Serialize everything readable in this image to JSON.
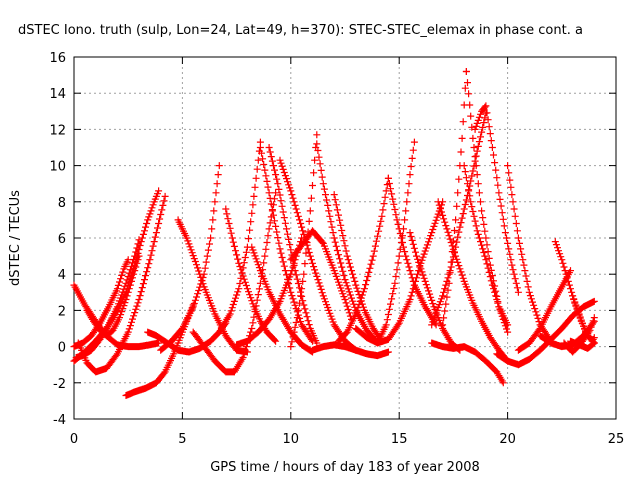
{
  "chart_data": {
    "type": "scatter",
    "title": "dSTEC Iono. truth (sulp, Lon=24, Lat=49, h=370): STEC-STEC_elemax in phase cont. a",
    "xlabel": "GPS time / hours of day 183 of year 2008",
    "ylabel": "dSTEC  / TECUs",
    "xlim": [
      0,
      25
    ],
    "ylim": [
      -4,
      16
    ],
    "xticks": [
      "0",
      "5",
      "10",
      "15",
      "20",
      "25"
    ],
    "yticks": [
      "-4",
      "-2",
      "0",
      "2",
      "4",
      "6",
      "8",
      "10",
      "12",
      "14",
      "16"
    ],
    "grid": true,
    "marker": "plus",
    "color": "#ff0000",
    "series": [
      {
        "x": [
          0.0,
          0.5,
          1.0,
          1.5,
          2.0,
          2.5,
          3.0,
          3.5,
          3.9
        ],
        "y": [
          3.4,
          2.3,
          1.4,
          0.6,
          0.1,
          0.0,
          0.0,
          0.1,
          0.2
        ]
      },
      {
        "x": [
          0.0,
          0.5,
          1.0,
          1.5,
          2.0,
          2.4,
          2.8,
          3.1,
          3.4,
          3.7,
          3.9
        ],
        "y": [
          -0.8,
          -0.3,
          0.3,
          1.0,
          2.0,
          3.0,
          4.5,
          5.8,
          7.0,
          8.0,
          8.6
        ]
      },
      {
        "x": [
          0.1,
          0.4,
          0.8,
          1.2,
          1.6,
          2.0,
          2.4,
          2.8,
          3.0
        ],
        "y": [
          -0.6,
          -0.5,
          -0.2,
          0.4,
          1.2,
          2.2,
          3.5,
          5.0,
          5.9
        ]
      },
      {
        "x": [
          0.2,
          0.6,
          1.0,
          1.5,
          2.0,
          2.5,
          3.0,
          3.5,
          4.0,
          4.2
        ],
        "y": [
          0.2,
          -0.9,
          -1.4,
          -1.2,
          -0.4,
          0.8,
          2.6,
          4.8,
          7.3,
          8.3
        ]
      },
      {
        "x": [
          0.0,
          0.4,
          0.8,
          1.2,
          1.6,
          2.0,
          2.3,
          2.5
        ],
        "y": [
          0.0,
          0.2,
          0.6,
          1.3,
          2.2,
          3.2,
          4.3,
          4.8
        ]
      },
      {
        "x": [
          0.6,
          0.9,
          1.2,
          1.5,
          1.8,
          2.1,
          2.4,
          2.7,
          3.0
        ],
        "y": [
          2.0,
          1.4,
          0.9,
          0.6,
          0.9,
          1.6,
          2.6,
          3.8,
          5.0
        ]
      },
      {
        "x": [
          2.4,
          2.8,
          3.3,
          3.8,
          4.2,
          4.6,
          5.0,
          5.5
        ],
        "y": [
          -2.7,
          -2.5,
          -2.3,
          -2.0,
          -1.4,
          -0.4,
          0.8,
          2.3
        ]
      },
      {
        "x": [
          3.4,
          3.8,
          4.3,
          4.8,
          5.3,
          5.8,
          6.3,
          6.7,
          7.0
        ],
        "y": [
          0.8,
          0.6,
          0.2,
          -0.2,
          -0.3,
          -0.1,
          0.3,
          0.8,
          1.3
        ]
      },
      {
        "x": [
          4.8,
          5.2,
          5.6,
          6.0,
          6.5,
          7.0,
          7.5,
          8.0
        ],
        "y": [
          7.0,
          6.0,
          4.7,
          3.3,
          1.8,
          0.6,
          -0.2,
          -0.3
        ]
      },
      {
        "x": [
          4.0,
          4.5,
          5.0,
          5.5,
          6.0,
          6.3,
          6.5,
          6.7
        ],
        "y": [
          -0.2,
          0.3,
          1.0,
          2.2,
          4.0,
          6.0,
          8.0,
          10.0
        ]
      },
      {
        "x": [
          5.5,
          6.0,
          6.5,
          7.0,
          7.4,
          7.8,
          8.2,
          8.6,
          9.0,
          9.3
        ],
        "y": [
          0.8,
          0.0,
          -0.8,
          -1.4,
          -1.4,
          -0.6,
          1.0,
          3.5,
          6.5,
          8.5
        ]
      },
      {
        "x": [
          7.0,
          7.3,
          7.6,
          8.0,
          8.3,
          8.6,
          8.9,
          9.3
        ],
        "y": [
          7.6,
          6.0,
          4.6,
          3.2,
          2.2,
          1.4,
          0.8,
          0.3
        ]
      },
      {
        "x": [
          6.8,
          7.2,
          7.6,
          8.0,
          8.3,
          8.6
        ],
        "y": [
          1.0,
          1.8,
          3.2,
          5.5,
          8.3,
          11.3
        ]
      },
      {
        "x": [
          8.6,
          9.0,
          9.5,
          10.0,
          10.5,
          11.0
        ],
        "y": [
          11.0,
          8.5,
          5.4,
          3.0,
          1.2,
          0.3
        ]
      },
      {
        "x": [
          9.0,
          9.4,
          9.8,
          10.2,
          10.6,
          10.9,
          11.2
        ],
        "y": [
          11.0,
          9.0,
          6.5,
          4.2,
          2.3,
          1.0,
          0.2
        ]
      },
      {
        "x": [
          8.2,
          8.6,
          9.0,
          9.5,
          10.0,
          10.5,
          11.0
        ],
        "y": [
          5.5,
          4.2,
          3.0,
          1.8,
          0.8,
          0.1,
          -0.3
        ]
      },
      {
        "x": [
          7.5,
          8.0,
          8.5,
          9.0,
          9.5,
          10.0,
          10.5
        ],
        "y": [
          0.1,
          0.3,
          0.8,
          1.5,
          2.5,
          4.0,
          6.0
        ]
      },
      {
        "x": [
          9.5,
          10.0,
          10.5,
          11.0,
          11.5,
          12.0,
          12.5,
          13.0
        ],
        "y": [
          10.3,
          8.6,
          6.6,
          4.6,
          2.8,
          1.2,
          0.3,
          -0.2
        ]
      },
      {
        "x": [
          10.0,
          10.3,
          10.6,
          10.9,
          11.2
        ],
        "y": [
          0.0,
          1.6,
          4.0,
          7.5,
          11.7
        ]
      },
      {
        "x": [
          11.2,
          11.5,
          12.0,
          12.5,
          13.0,
          13.5,
          14.0
        ],
        "y": [
          11.2,
          9.0,
          6.0,
          3.7,
          2.0,
          0.9,
          0.2
        ]
      },
      {
        "x": [
          12.0,
          12.3,
          12.6,
          13.0,
          13.4,
          13.8,
          14.2
        ],
        "y": [
          8.4,
          6.7,
          5.0,
          3.4,
          2.0,
          1.0,
          0.3
        ]
      },
      {
        "x": [
          10.0,
          10.5,
          11.0,
          11.5,
          12.0,
          12.5,
          12.8
        ],
        "y": [
          4.8,
          5.6,
          6.4,
          5.7,
          4.2,
          2.6,
          1.5
        ]
      },
      {
        "x": [
          11.0,
          11.5,
          12.0,
          12.5,
          13.0,
          13.5,
          14.0,
          14.5
        ],
        "y": [
          -0.2,
          0.0,
          0.1,
          0.0,
          -0.2,
          -0.4,
          -0.5,
          -0.3
        ]
      },
      {
        "x": [
          12.2,
          12.6,
          13.0,
          13.4,
          13.8,
          14.2,
          14.5
        ],
        "y": [
          0.3,
          0.8,
          1.8,
          3.2,
          5.0,
          7.2,
          9.3
        ]
      },
      {
        "x": [
          14.5,
          14.9,
          15.3,
          15.7,
          16.2,
          16.7
        ],
        "y": [
          9.3,
          7.0,
          5.0,
          3.4,
          2.2,
          1.2
        ]
      },
      {
        "x": [
          14.0,
          14.4,
          14.8,
          15.2,
          15.5,
          15.7
        ],
        "y": [
          0.2,
          1.2,
          3.5,
          6.5,
          9.5,
          11.3
        ]
      },
      {
        "x": [
          13.0,
          13.5,
          14.0,
          14.5,
          15.0,
          15.5,
          16.0,
          16.5,
          17.0
        ],
        "y": [
          1.0,
          0.5,
          0.2,
          0.4,
          1.3,
          2.6,
          4.6,
          6.3,
          8.0
        ]
      },
      {
        "x": [
          15.5,
          15.8,
          16.2,
          16.6,
          17.0,
          17.4,
          17.8
        ],
        "y": [
          6.3,
          5.0,
          3.6,
          2.2,
          1.0,
          0.2,
          -0.2
        ]
      },
      {
        "x": [
          16.5,
          17.0,
          17.5,
          18.0,
          18.5,
          19.0,
          19.5,
          19.8
        ],
        "y": [
          0.2,
          0.0,
          -0.1,
          0.0,
          -0.3,
          -0.8,
          -1.4,
          -2.0
        ]
      },
      {
        "x": [
          16.8,
          17.2,
          17.6,
          18.0,
          18.4,
          18.8,
          19.2,
          19.6,
          20.0
        ],
        "y": [
          8.0,
          6.5,
          5.0,
          3.6,
          2.4,
          1.4,
          0.5,
          -0.2,
          -0.8
        ]
      },
      {
        "x": [
          17.0,
          17.3,
          17.6,
          17.9,
          18.1
        ],
        "y": [
          1.2,
          3.5,
          7.0,
          11.5,
          15.2
        ]
      },
      {
        "x": [
          18.1,
          18.4,
          18.8,
          19.2,
          19.6,
          20.0
        ],
        "y": [
          15.2,
          11.5,
          7.5,
          4.5,
          2.2,
          0.8
        ]
      },
      {
        "x": [
          18.0,
          18.3,
          18.6,
          19.0,
          19.3,
          19.6,
          20.0
        ],
        "y": [
          10.0,
          8.0,
          6.4,
          4.8,
          3.4,
          2.2,
          1.2
        ]
      },
      {
        "x": [
          18.5,
          18.8,
          19.0,
          19.3,
          19.6,
          19.9,
          20.2,
          20.5
        ],
        "y": [
          12.0,
          13.0,
          13.3,
          11.0,
          8.5,
          6.3,
          4.5,
          3.0
        ]
      },
      {
        "x": [
          16.5,
          17.0,
          17.4,
          17.8,
          18.2,
          18.6,
          19.0
        ],
        "y": [
          1.2,
          2.8,
          4.4,
          6.6,
          8.6,
          10.8,
          12.9
        ]
      },
      {
        "x": [
          20.0,
          20.5,
          21.0,
          21.5,
          22.0
        ],
        "y": [
          10.0,
          6.0,
          3.0,
          1.2,
          0.3
        ]
      },
      {
        "x": [
          19.5,
          20.0,
          20.5,
          21.0,
          21.5,
          22.0,
          22.5,
          23.0,
          23.5,
          24.0
        ],
        "y": [
          -0.4,
          -0.8,
          -1.0,
          -0.7,
          -0.2,
          0.4,
          1.0,
          1.7,
          2.2,
          2.5
        ]
      },
      {
        "x": [
          22.2,
          22.5,
          22.8,
          23.1,
          23.4,
          23.7,
          24.0
        ],
        "y": [
          5.8,
          4.8,
          3.6,
          2.4,
          1.4,
          0.6,
          0.2
        ]
      },
      {
        "x": [
          20.5,
          21.0,
          21.5,
          22.0,
          22.5,
          22.9
        ],
        "y": [
          -0.2,
          0.2,
          1.0,
          2.2,
          3.3,
          4.2
        ]
      },
      {
        "x": [
          23.0,
          23.3,
          23.6,
          23.9,
          24.0
        ],
        "y": [
          2.8,
          1.8,
          0.8,
          0.3,
          0.5
        ]
      },
      {
        "x": [
          21.5,
          22.0,
          22.5,
          23.0,
          23.5,
          24.0
        ],
        "y": [
          0.6,
          0.2,
          0.0,
          0.1,
          0.6,
          1.4
        ]
      },
      {
        "x": [
          22.6,
          23.0,
          23.4,
          23.8,
          24.0
        ],
        "y": [
          0.2,
          -0.3,
          0.2,
          0.9,
          1.6
        ]
      },
      {
        "x": [
          22.9,
          23.3,
          23.7,
          24.0
        ],
        "y": [
          0.3,
          0.1,
          -0.1,
          0.2
        ]
      }
    ]
  }
}
